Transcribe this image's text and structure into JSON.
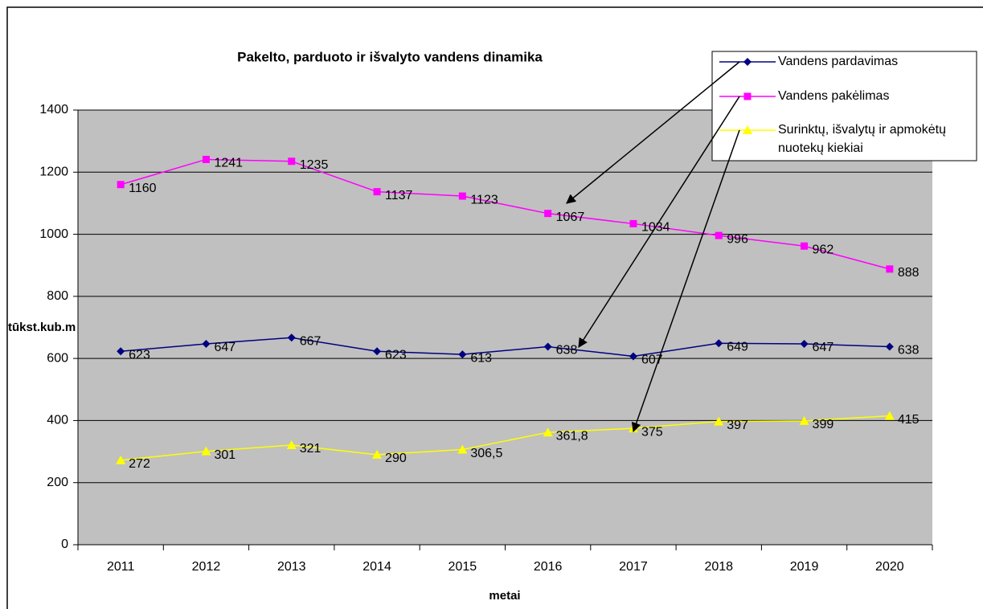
{
  "chart_data": {
    "type": "line",
    "title": "Pakelto, parduoto ir išvalyto vandens dinamika",
    "x_label": "metai",
    "y_label": "tūkst.kub.m",
    "categories": [
      "2011",
      "2012",
      "2013",
      "2014",
      "2015",
      "2016",
      "2017",
      "2018",
      "2019",
      "2020"
    ],
    "ylim": [
      0,
      1400
    ],
    "yticks": [
      0,
      200,
      400,
      600,
      800,
      1000,
      1200,
      1400
    ],
    "grid": true,
    "legend": "top-right",
    "series": [
      {
        "name": "Vandens pardavimas",
        "color": "#000080",
        "marker": "diamond",
        "values": [
          623,
          647,
          667,
          623,
          613,
          638,
          607,
          649,
          647,
          638
        ]
      },
      {
        "name": "Vandens pakėlimas",
        "color": "#ff00ff",
        "marker": "square",
        "values": [
          1160,
          1241,
          1235,
          1137,
          1123,
          1067,
          1034,
          996,
          962,
          888
        ]
      },
      {
        "name": "Surinktų, išvalytų ir apmokėtų nuotekų kiekiai",
        "color": "#ffff00",
        "marker": "triangle",
        "values": [
          272,
          301,
          321,
          290,
          306.5,
          361.8,
          375,
          397,
          399,
          415
        ],
        "value_labels": [
          "272",
          "301",
          "321",
          "290",
          "306,5",
          "361,8",
          "375",
          "397",
          "399",
          "415"
        ]
      }
    ]
  }
}
